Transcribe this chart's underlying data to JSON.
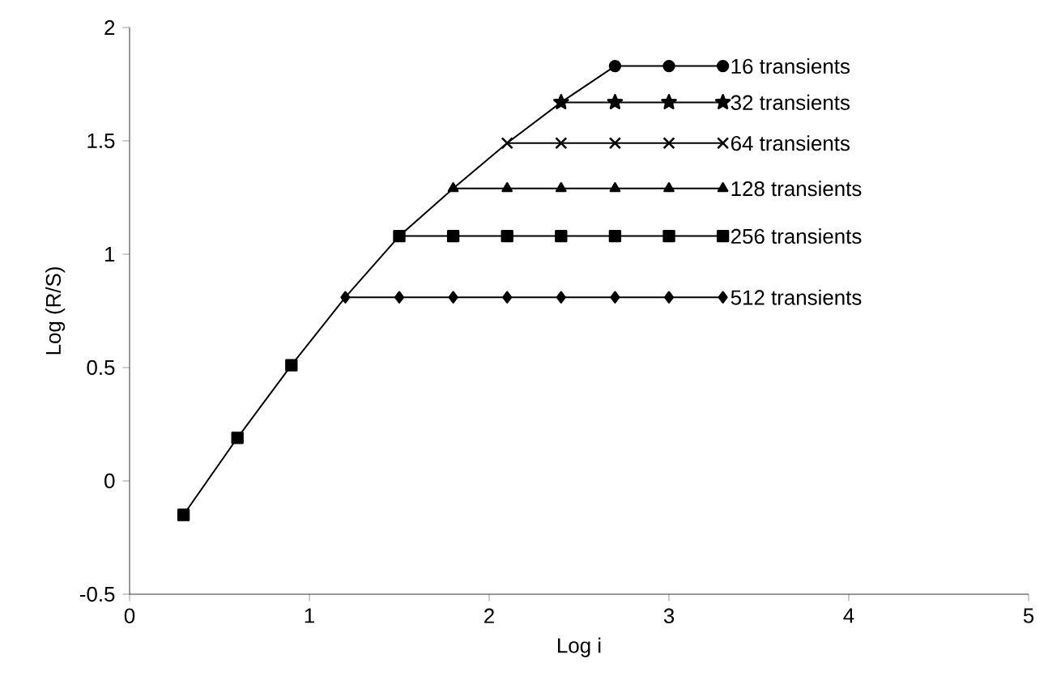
{
  "chart_data": {
    "type": "line",
    "xlabel": "Log i",
    "ylabel": "Log (R/S)",
    "xlim": [
      0,
      5
    ],
    "ylim": [
      -0.5,
      2
    ],
    "xticks": [
      0,
      1,
      2,
      3,
      4,
      5
    ],
    "yticks": [
      -0.5,
      0,
      0.5,
      1,
      1.5,
      2
    ],
    "grid": false,
    "legend": false,
    "line_style": "solid",
    "series": [
      {
        "color": "#000000",
        "marker": "square",
        "x": [
          0.3,
          0.6,
          0.9,
          1.2,
          1.5,
          1.8,
          2.1,
          2.4,
          2.7
        ],
        "values": [
          -0.15,
          0.19,
          0.51,
          0.81,
          1.08,
          1.29,
          1.49,
          1.67,
          1.83
        ]
      },
      {
        "name": "32 transients",
        "color": "#000000",
        "marker": "star",
        "x": [
          2.4,
          2.7,
          3.0,
          3.3
        ],
        "values": [
          1.67,
          1.67,
          1.67,
          1.67
        ]
      },
      {
        "name": "64 transients",
        "color": "#000000",
        "marker": "cross",
        "x": [
          2.1,
          2.4,
          2.7,
          3.0,
          3.3
        ],
        "values": [
          1.49,
          1.49,
          1.49,
          1.49,
          1.49
        ]
      },
      {
        "name": "128 transients",
        "color": "#000000",
        "marker": "triangle",
        "x": [
          1.8,
          2.1,
          2.4,
          2.7,
          3.0,
          3.3
        ],
        "values": [
          1.29,
          1.29,
          1.29,
          1.29,
          1.29,
          1.29
        ]
      },
      {
        "name": "256 transients",
        "color": "#000000",
        "marker": "square",
        "x": [
          1.5,
          1.8,
          2.1,
          2.4,
          2.7,
          3.0,
          3.3
        ],
        "values": [
          1.08,
          1.08,
          1.08,
          1.08,
          1.08,
          1.08,
          1.08
        ]
      },
      {
        "name": "512 transients",
        "color": "#000000",
        "marker": "diamond",
        "x": [
          1.2,
          1.5,
          1.8,
          2.1,
          2.4,
          2.7,
          3.0,
          3.3
        ],
        "values": [
          0.81,
          0.81,
          0.81,
          0.81,
          0.81,
          0.81,
          0.81,
          0.81
        ]
      },
      {
        "name": "16 transients",
        "color": "#000000",
        "marker": "circle",
        "x": [
          2.7,
          3.0,
          3.3
        ],
        "values": [
          1.83,
          1.83,
          1.83
        ]
      }
    ]
  }
}
